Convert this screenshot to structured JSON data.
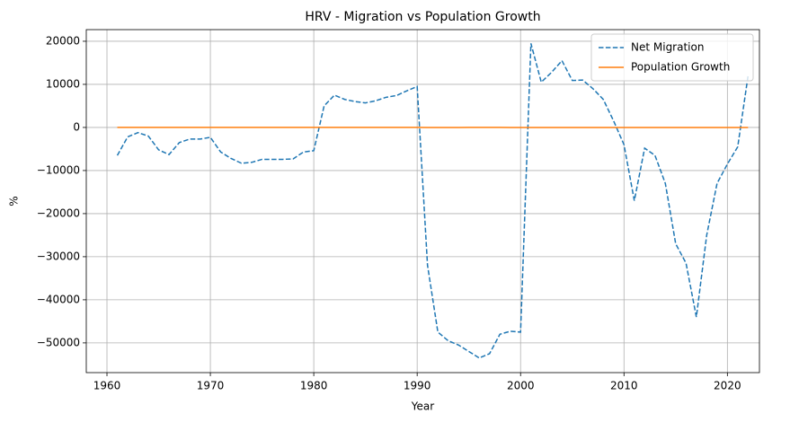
{
  "chart_data": {
    "type": "line",
    "title": "HRV - Migration vs Population Growth",
    "x_label": "Year",
    "y_label": "%",
    "x": [
      1961,
      1962,
      1963,
      1964,
      1965,
      1966,
      1967,
      1968,
      1969,
      1970,
      1971,
      1972,
      1973,
      1974,
      1975,
      1976,
      1977,
      1978,
      1979,
      1980,
      1981,
      1982,
      1983,
      1984,
      1985,
      1986,
      1987,
      1988,
      1989,
      1990,
      1991,
      1992,
      1993,
      1994,
      1995,
      1996,
      1997,
      1998,
      1999,
      2000,
      2001,
      2002,
      2003,
      2004,
      2005,
      2006,
      2007,
      2008,
      2009,
      2010,
      2011,
      2012,
      2013,
      2014,
      2015,
      2016,
      2017,
      2018,
      2019,
      2020,
      2021,
      2022
    ],
    "series": [
      {
        "name": "Net Migration",
        "color": "#1f77b4",
        "linestyle": "dashed",
        "values": [
          -6500,
          -2200,
          -1200,
          -2000,
          -5200,
          -6300,
          -3500,
          -2700,
          -2700,
          -2300,
          -5700,
          -7200,
          -8300,
          -8100,
          -7400,
          -7400,
          -7400,
          -7300,
          -5700,
          -5400,
          5000,
          7500,
          6500,
          6000,
          5700,
          6200,
          7000,
          7400,
          8500,
          9500,
          -32000,
          -47500,
          -49500,
          -50500,
          -52000,
          -53500,
          -52500,
          -48000,
          -47300,
          -47500,
          19500,
          10500,
          12800,
          15500,
          10900,
          11000,
          9000,
          6500,
          1500,
          -4000,
          -17000,
          -4800,
          -6500,
          -13000,
          -27000,
          -31500,
          -44000,
          -25000,
          -13000,
          -8500,
          -4500,
          12000
        ]
      },
      {
        "name": "Population Growth",
        "color": "#ff7f0e",
        "linestyle": "solid",
        "values": [
          0.4,
          0.4,
          0.4,
          0.4,
          0.4,
          0.4,
          0.4,
          0.4,
          0.4,
          0.4,
          0.4,
          0.4,
          0.4,
          0.4,
          0.4,
          0.4,
          0.4,
          0.4,
          0.4,
          0.3,
          0.3,
          0.3,
          0.3,
          0.2,
          0.2,
          0.2,
          0.1,
          0.1,
          0.1,
          0.1,
          -0.2,
          -0.3,
          -0.3,
          -0.2,
          0.1,
          0.0,
          0.0,
          0.0,
          -0.1,
          -1.0,
          -0.8,
          -0.1,
          -0.1,
          -0.1,
          -0.1,
          -0.1,
          -0.1,
          -0.1,
          -0.1,
          -0.2,
          -0.3,
          -0.3,
          -0.4,
          -0.5,
          -0.9,
          -0.8,
          -1.2,
          -1.0,
          -0.7,
          -0.6,
          -3.8,
          -0.6
        ]
      }
    ],
    "xlim": [
      1958,
      2023.1
    ],
    "ylim": [
      -56900,
      22700
    ],
    "xticks": [
      1960,
      1970,
      1980,
      1990,
      2000,
      2010,
      2020
    ],
    "yticks": [
      {
        "value": -50000,
        "label": "−50000"
      },
      {
        "value": -40000,
        "label": "−40000"
      },
      {
        "value": -30000,
        "label": "−30000"
      },
      {
        "value": -20000,
        "label": "−20000"
      },
      {
        "value": -10000,
        "label": "−10000"
      },
      0,
      10000,
      20000
    ],
    "grid": true,
    "legend": "upper right"
  }
}
